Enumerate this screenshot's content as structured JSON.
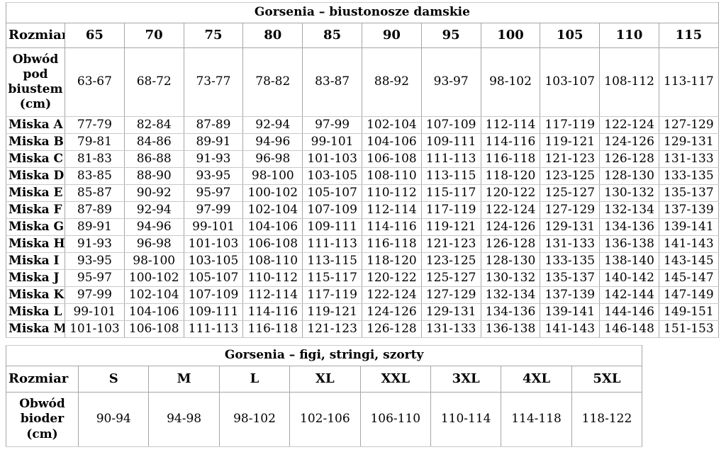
{
  "accent_colors": {
    "border_outer": "#9a9a9a",
    "border_vertical": "#a6a6a6",
    "border_horizontal": "#c9c9c9",
    "text": "#000000",
    "background": "#ffffff"
  },
  "bra_table": {
    "title": "Gorsenia – biustonosze damskie",
    "size_row_label": "Rozmiar",
    "sizes": [
      "65",
      "70",
      "75",
      "80",
      "85",
      "90",
      "95",
      "100",
      "105",
      "110",
      "115"
    ],
    "measure_row": {
      "label": "Obwód pod biustem (cm)",
      "values": [
        "63-67",
        "68-72",
        "73-77",
        "78-82",
        "83-87",
        "88-92",
        "93-97",
        "98-102",
        "103-107",
        "108-112",
        "113-117"
      ]
    },
    "cup_rows": [
      {
        "label": "Miska A",
        "values": [
          "77-79",
          "82-84",
          "87-89",
          "92-94",
          "97-99",
          "102-104",
          "107-109",
          "112-114",
          "117-119",
          "122-124",
          "127-129"
        ]
      },
      {
        "label": "Miska B",
        "values": [
          "79-81",
          "84-86",
          "89-91",
          "94-96",
          "99-101",
          "104-106",
          "109-111",
          "114-116",
          "119-121",
          "124-126",
          "129-131"
        ]
      },
      {
        "label": "Miska C",
        "values": [
          "81-83",
          "86-88",
          "91-93",
          "96-98",
          "101-103",
          "106-108",
          "111-113",
          "116-118",
          "121-123",
          "126-128",
          "131-133"
        ]
      },
      {
        "label": "Miska D",
        "values": [
          "83-85",
          "88-90",
          "93-95",
          "98-100",
          "103-105",
          "108-110",
          "113-115",
          "118-120",
          "123-125",
          "128-130",
          "133-135"
        ]
      },
      {
        "label": "Miska E",
        "values": [
          "85-87",
          "90-92",
          "95-97",
          "100-102",
          "105-107",
          "110-112",
          "115-117",
          "120-122",
          "125-127",
          "130-132",
          "135-137"
        ]
      },
      {
        "label": "Miska F",
        "values": [
          "87-89",
          "92-94",
          "97-99",
          "102-104",
          "107-109",
          "112-114",
          "117-119",
          "122-124",
          "127-129",
          "132-134",
          "137-139"
        ]
      },
      {
        "label": "Miska G",
        "values": [
          "89-91",
          "94-96",
          "99-101",
          "104-106",
          "109-111",
          "114-116",
          "119-121",
          "124-126",
          "129-131",
          "134-136",
          "139-141"
        ]
      },
      {
        "label": "Miska H",
        "values": [
          "91-93",
          "96-98",
          "101-103",
          "106-108",
          "111-113",
          "116-118",
          "121-123",
          "126-128",
          "131-133",
          "136-138",
          "141-143"
        ]
      },
      {
        "label": "Miska I",
        "values": [
          "93-95",
          "98-100",
          "103-105",
          "108-110",
          "113-115",
          "118-120",
          "123-125",
          "128-130",
          "133-135",
          "138-140",
          "143-145"
        ]
      },
      {
        "label": "Miska J",
        "values": [
          "95-97",
          "100-102",
          "105-107",
          "110-112",
          "115-117",
          "120-122",
          "125-127",
          "130-132",
          "135-137",
          "140-142",
          "145-147"
        ]
      },
      {
        "label": "Miska K",
        "values": [
          "97-99",
          "102-104",
          "107-109",
          "112-114",
          "117-119",
          "122-124",
          "127-129",
          "132-134",
          "137-139",
          "142-144",
          "147-149"
        ]
      },
      {
        "label": "Miska L",
        "values": [
          "99-101",
          "104-106",
          "109-111",
          "114-116",
          "119-121",
          "124-126",
          "129-131",
          "134-136",
          "139-141",
          "144-146",
          "149-151"
        ]
      },
      {
        "label": "Miska M",
        "values": [
          "101-103",
          "106-108",
          "111-113",
          "116-118",
          "121-123",
          "126-128",
          "131-133",
          "136-138",
          "141-143",
          "146-148",
          "151-153"
        ]
      }
    ]
  },
  "panty_table": {
    "title": "Gorsenia – figi, stringi, szorty",
    "size_row_label": "Rozmiar",
    "sizes": [
      "S",
      "M",
      "L",
      "XL",
      "XXL",
      "3XL",
      "4XL",
      "5XL"
    ],
    "measure_row": {
      "label": "Obwód bioder (cm)",
      "values": [
        "90-94",
        "94-98",
        "98-102",
        "102-106",
        "106-110",
        "110-114",
        "114-118",
        "118-122"
      ]
    }
  }
}
